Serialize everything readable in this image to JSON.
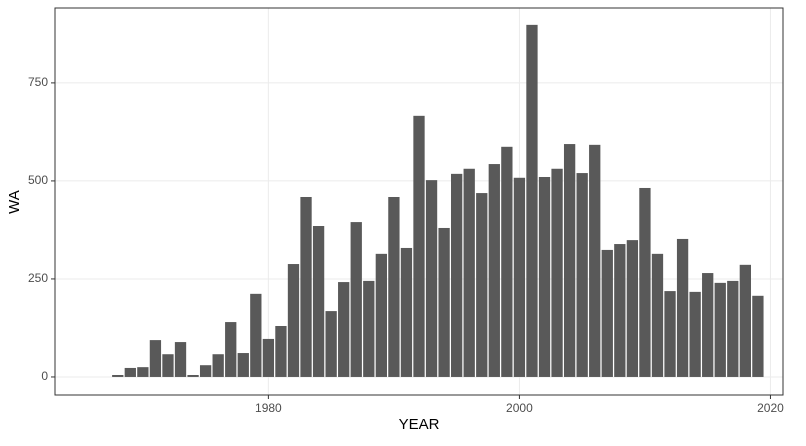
{
  "chart_data": {
    "type": "bar",
    "x_label": "YEAR",
    "y_label": "WA",
    "x": [
      1968,
      1969,
      1970,
      1971,
      1972,
      1973,
      1974,
      1975,
      1976,
      1977,
      1978,
      1979,
      1980,
      1981,
      1982,
      1983,
      1984,
      1985,
      1986,
      1987,
      1988,
      1989,
      1990,
      1991,
      1992,
      1993,
      1994,
      1995,
      1996,
      1997,
      1998,
      1999,
      2000,
      2001,
      2002,
      2003,
      2004,
      2005,
      2006,
      2007,
      2008,
      2009,
      2010,
      2011,
      2012,
      2013,
      2014,
      2015,
      2016,
      2017,
      2018,
      2019
    ],
    "values": [
      5,
      23,
      25,
      94,
      58,
      89,
      5,
      30,
      58,
      140,
      61,
      212,
      97,
      130,
      288,
      459,
      385,
      168,
      242,
      395,
      245,
      314,
      459,
      329,
      666,
      502,
      380,
      518,
      531,
      469,
      543,
      587,
      508,
      898,
      510,
      531,
      594,
      520,
      592,
      324,
      339,
      349,
      482,
      314,
      219,
      352,
      217,
      265,
      240,
      245,
      286,
      207
    ],
    "color": "#595959",
    "xlim": [
      1963,
      2021
    ],
    "xticks": [
      1980,
      2000,
      2020
    ],
    "ylim": [
      -46,
      941
    ],
    "yticks": [
      0,
      250,
      500,
      750
    ],
    "grid": true
  }
}
